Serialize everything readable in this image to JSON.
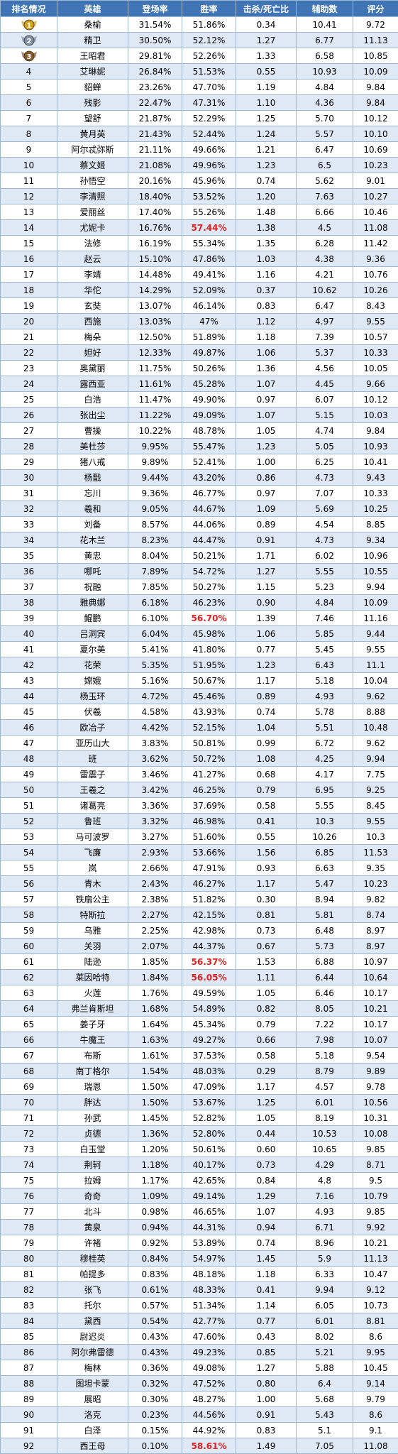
{
  "headers": [
    "排名情况",
    "英雄",
    "登场率",
    "胜率",
    "击杀/死亡比",
    "辅助数",
    "评分"
  ],
  "highlight_color": "#e02020",
  "medals": [
    {
      "rank": "1",
      "color": "#d4a017",
      "icon": "gold-medal-icon"
    },
    {
      "rank": "2",
      "color": "#7f8fa6",
      "icon": "silver-medal-icon"
    },
    {
      "rank": "3",
      "color": "#8a5a2b",
      "icon": "bronze-medal-icon"
    }
  ],
  "rows": [
    {
      "rank": "1",
      "hero": "桑榆",
      "appear": "31.54%",
      "win": "51.86%",
      "kd": "0.34",
      "assist": "10.41",
      "score": "9.72"
    },
    {
      "rank": "2",
      "hero": "精卫",
      "appear": "30.50%",
      "win": "52.12%",
      "kd": "1.27",
      "assist": "6.77",
      "score": "11.13"
    },
    {
      "rank": "3",
      "hero": "王昭君",
      "appear": "29.81%",
      "win": "52.26%",
      "kd": "1.33",
      "assist": "6.58",
      "score": "10.85"
    },
    {
      "rank": "4",
      "hero": "艾琳妮",
      "appear": "26.84%",
      "win": "51.53%",
      "kd": "0.55",
      "assist": "10.93",
      "score": "10.09"
    },
    {
      "rank": "5",
      "hero": "貂蝉",
      "appear": "23.26%",
      "win": "47.70%",
      "kd": "1.19",
      "assist": "4.84",
      "score": "9.84"
    },
    {
      "rank": "6",
      "hero": "残影",
      "appear": "22.47%",
      "win": "47.31%",
      "kd": "1.10",
      "assist": "4.36",
      "score": "9.84"
    },
    {
      "rank": "7",
      "hero": "望舒",
      "appear": "21.87%",
      "win": "52.29%",
      "kd": "1.25",
      "assist": "5.70",
      "score": "10.12"
    },
    {
      "rank": "8",
      "hero": "黄月英",
      "appear": "21.43%",
      "win": "52.44%",
      "kd": "1.24",
      "assist": "5.57",
      "score": "10.10"
    },
    {
      "rank": "9",
      "hero": "阿尔忒弥斯",
      "appear": "21.11%",
      "win": "49.66%",
      "kd": "1.21",
      "assist": "6.47",
      "score": "10.69"
    },
    {
      "rank": "10",
      "hero": "蔡文姬",
      "appear": "21.08%",
      "win": "49.96%",
      "kd": "1.23",
      "assist": "6.5",
      "score": "10.23"
    },
    {
      "rank": "11",
      "hero": "孙悟空",
      "appear": "20.16%",
      "win": "45.96%",
      "kd": "0.74",
      "assist": "5.62",
      "score": "9.01"
    },
    {
      "rank": "12",
      "hero": "李清照",
      "appear": "18.40%",
      "win": "53.52%",
      "kd": "1.20",
      "assist": "7.63",
      "score": "10.27"
    },
    {
      "rank": "13",
      "hero": "爱丽丝",
      "appear": "17.40%",
      "win": "55.26%",
      "kd": "1.48",
      "assist": "6.66",
      "score": "10.46"
    },
    {
      "rank": "14",
      "hero": "尤妮卡",
      "appear": "16.76%",
      "win": "57.44%",
      "kd": "1.38",
      "assist": "4.5",
      "score": "11.08",
      "hl": true
    },
    {
      "rank": "15",
      "hero": "法修",
      "appear": "16.19%",
      "win": "55.34%",
      "kd": "1.35",
      "assist": "6.28",
      "score": "11.42"
    },
    {
      "rank": "16",
      "hero": "赵云",
      "appear": "15.10%",
      "win": "47.86%",
      "kd": "1.03",
      "assist": "4.38",
      "score": "9.36"
    },
    {
      "rank": "17",
      "hero": "李靖",
      "appear": "14.48%",
      "win": "49.41%",
      "kd": "1.16",
      "assist": "4.21",
      "score": "10.76"
    },
    {
      "rank": "18",
      "hero": "华佗",
      "appear": "14.29%",
      "win": "52.09%",
      "kd": "0.37",
      "assist": "10.62",
      "score": "10.26"
    },
    {
      "rank": "19",
      "hero": "玄奘",
      "appear": "13.07%",
      "win": "46.14%",
      "kd": "0.83",
      "assist": "6.47",
      "score": "8.43"
    },
    {
      "rank": "20",
      "hero": "西施",
      "appear": "13.03%",
      "win": "47%",
      "kd": "1.12",
      "assist": "4.97",
      "score": "9.55"
    },
    {
      "rank": "21",
      "hero": "梅朵",
      "appear": "12.50%",
      "win": "51.89%",
      "kd": "1.18",
      "assist": "7.39",
      "score": "10.57"
    },
    {
      "rank": "22",
      "hero": "妲好",
      "appear": "12.33%",
      "win": "49.87%",
      "kd": "1.06",
      "assist": "5.37",
      "score": "10.33"
    },
    {
      "rank": "23",
      "hero": "奥黛丽",
      "appear": "11.75%",
      "win": "50.26%",
      "kd": "1.36",
      "assist": "4.56",
      "score": "10.05"
    },
    {
      "rank": "24",
      "hero": "露西亚",
      "appear": "11.61%",
      "win": "45.28%",
      "kd": "1.07",
      "assist": "4.45",
      "score": "9.66"
    },
    {
      "rank": "25",
      "hero": "白浩",
      "appear": "11.47%",
      "win": "49.90%",
      "kd": "0.97",
      "assist": "6.07",
      "score": "10.12"
    },
    {
      "rank": "26",
      "hero": "张出尘",
      "appear": "11.22%",
      "win": "49.09%",
      "kd": "1.07",
      "assist": "5.15",
      "score": "10.03"
    },
    {
      "rank": "27",
      "hero": "曹操",
      "appear": "10.22%",
      "win": "48.78%",
      "kd": "1.05",
      "assist": "4.74",
      "score": "9.84"
    },
    {
      "rank": "28",
      "hero": "美杜莎",
      "appear": "9.95%",
      "win": "55.47%",
      "kd": "1.23",
      "assist": "5.05",
      "score": "10.93"
    },
    {
      "rank": "29",
      "hero": "猪八戒",
      "appear": "9.89%",
      "win": "52.41%",
      "kd": "1.00",
      "assist": "6.25",
      "score": "10.41"
    },
    {
      "rank": "30",
      "hero": "杨戬",
      "appear": "9.44%",
      "win": "43.20%",
      "kd": "0.86",
      "assist": "4.73",
      "score": "9.43"
    },
    {
      "rank": "31",
      "hero": "忘川",
      "appear": "9.36%",
      "win": "46.77%",
      "kd": "0.97",
      "assist": "7.07",
      "score": "10.33"
    },
    {
      "rank": "32",
      "hero": "羲和",
      "appear": "9.05%",
      "win": "44.67%",
      "kd": "1.09",
      "assist": "5.69",
      "score": "10.25"
    },
    {
      "rank": "33",
      "hero": "刘备",
      "appear": "8.57%",
      "win": "44.06%",
      "kd": "0.89",
      "assist": "4.54",
      "score": "8.85"
    },
    {
      "rank": "34",
      "hero": "花木兰",
      "appear": "8.23%",
      "win": "44.47%",
      "kd": "0.91",
      "assist": "4.73",
      "score": "9.34"
    },
    {
      "rank": "35",
      "hero": "黄忠",
      "appear": "8.04%",
      "win": "50.21%",
      "kd": "1.71",
      "assist": "6.02",
      "score": "10.96"
    },
    {
      "rank": "36",
      "hero": "哪吒",
      "appear": "7.89%",
      "win": "54.72%",
      "kd": "1.27",
      "assist": "5.55",
      "score": "10.55"
    },
    {
      "rank": "37",
      "hero": "祝融",
      "appear": "7.85%",
      "win": "50.27%",
      "kd": "1.15",
      "assist": "5.23",
      "score": "9.94"
    },
    {
      "rank": "38",
      "hero": "雅典娜",
      "appear": "6.18%",
      "win": "46.23%",
      "kd": "0.90",
      "assist": "4.84",
      "score": "10.09"
    },
    {
      "rank": "39",
      "hero": "鲲鹏",
      "appear": "6.10%",
      "win": "56.70%",
      "kd": "1.39",
      "assist": "7.46",
      "score": "11.16",
      "hl": true
    },
    {
      "rank": "40",
      "hero": "吕洞宾",
      "appear": "6.04%",
      "win": "45.98%",
      "kd": "1.06",
      "assist": "5.85",
      "score": "9.44"
    },
    {
      "rank": "41",
      "hero": "夏尔美",
      "appear": "5.41%",
      "win": "41.80%",
      "kd": "0.77",
      "assist": "5.45",
      "score": "9.55"
    },
    {
      "rank": "42",
      "hero": "花荣",
      "appear": "5.35%",
      "win": "51.95%",
      "kd": "1.23",
      "assist": "6.43",
      "score": "11.1"
    },
    {
      "rank": "43",
      "hero": "嫦娥",
      "appear": "5.16%",
      "win": "50.67%",
      "kd": "1.17",
      "assist": "5.18",
      "score": "10.04"
    },
    {
      "rank": "44",
      "hero": "杨玉环",
      "appear": "4.72%",
      "win": "45.46%",
      "kd": "0.89",
      "assist": "4.93",
      "score": "9.62"
    },
    {
      "rank": "45",
      "hero": "伏羲",
      "appear": "4.58%",
      "win": "43.93%",
      "kd": "0.74",
      "assist": "5.78",
      "score": "8.88"
    },
    {
      "rank": "46",
      "hero": "欧冶子",
      "appear": "4.42%",
      "win": "52.15%",
      "kd": "1.04",
      "assist": "5.51",
      "score": "10.48"
    },
    {
      "rank": "47",
      "hero": "亚历山大",
      "appear": "3.83%",
      "win": "50.81%",
      "kd": "0.99",
      "assist": "6.72",
      "score": "9.62"
    },
    {
      "rank": "48",
      "hero": "班",
      "appear": "3.62%",
      "win": "50.72%",
      "kd": "1.08",
      "assist": "4.25",
      "score": "9.94"
    },
    {
      "rank": "49",
      "hero": "雷震子",
      "appear": "3.46%",
      "win": "41.27%",
      "kd": "0.68",
      "assist": "4.17",
      "score": "7.75"
    },
    {
      "rank": "50",
      "hero": "王羲之",
      "appear": "3.42%",
      "win": "46.25%",
      "kd": "0.79",
      "assist": "6.95",
      "score": "9.25"
    },
    {
      "rank": "51",
      "hero": "诸葛亮",
      "appear": "3.36%",
      "win": "37.69%",
      "kd": "0.58",
      "assist": "5.55",
      "score": "8.45"
    },
    {
      "rank": "52",
      "hero": "鲁班",
      "appear": "3.32%",
      "win": "46.98%",
      "kd": "0.41",
      "assist": "10.3",
      "score": "9.55"
    },
    {
      "rank": "53",
      "hero": "马可波罗",
      "appear": "3.27%",
      "win": "51.60%",
      "kd": "0.55",
      "assist": "10.26",
      "score": "10.3"
    },
    {
      "rank": "54",
      "hero": "飞廉",
      "appear": "2.93%",
      "win": "53.66%",
      "kd": "1.56",
      "assist": "6.85",
      "score": "11.53"
    },
    {
      "rank": "55",
      "hero": "岚",
      "appear": "2.66%",
      "win": "47.91%",
      "kd": "0.93",
      "assist": "6.63",
      "score": "9.35"
    },
    {
      "rank": "56",
      "hero": "青木",
      "appear": "2.43%",
      "win": "46.27%",
      "kd": "1.17",
      "assist": "5.47",
      "score": "10.23"
    },
    {
      "rank": "57",
      "hero": "铁扇公主",
      "appear": "2.38%",
      "win": "51.82%",
      "kd": "0.30",
      "assist": "8.94",
      "score": "9.82"
    },
    {
      "rank": "58",
      "hero": "特斯拉",
      "appear": "2.27%",
      "win": "42.15%",
      "kd": "0.81",
      "assist": "5.81",
      "score": "8.74"
    },
    {
      "rank": "59",
      "hero": "乌雅",
      "appear": "2.25%",
      "win": "42.98%",
      "kd": "0.73",
      "assist": "6.48",
      "score": "8.97"
    },
    {
      "rank": "60",
      "hero": "关羽",
      "appear": "2.07%",
      "win": "44.37%",
      "kd": "0.67",
      "assist": "5.73",
      "score": "8.97"
    },
    {
      "rank": "61",
      "hero": "陆逊",
      "appear": "1.85%",
      "win": "56.37%",
      "kd": "1.53",
      "assist": "6.88",
      "score": "10.97",
      "hl": true
    },
    {
      "rank": "62",
      "hero": "莱因哈特",
      "appear": "1.84%",
      "win": "56.05%",
      "kd": "1.11",
      "assist": "6.44",
      "score": "10.64",
      "hl": true
    },
    {
      "rank": "63",
      "hero": "火莲",
      "appear": "1.76%",
      "win": "49.59%",
      "kd": "1.05",
      "assist": "6.46",
      "score": "10.17"
    },
    {
      "rank": "64",
      "hero": "弗兰肯斯坦",
      "appear": "1.68%",
      "win": "54.89%",
      "kd": "0.82",
      "assist": "8.05",
      "score": "10.21"
    },
    {
      "rank": "65",
      "hero": "姜子牙",
      "appear": "1.64%",
      "win": "45.34%",
      "kd": "0.79",
      "assist": "7.22",
      "score": "10.17"
    },
    {
      "rank": "66",
      "hero": "牛魔王",
      "appear": "1.63%",
      "win": "49.27%",
      "kd": "0.66",
      "assist": "7.98",
      "score": "10.07"
    },
    {
      "rank": "67",
      "hero": "布斯",
      "appear": "1.61%",
      "win": "37.53%",
      "kd": "0.58",
      "assist": "5.18",
      "score": "9.54"
    },
    {
      "rank": "68",
      "hero": "南丁格尔",
      "appear": "1.54%",
      "win": "48.03%",
      "kd": "0.29",
      "assist": "8.79",
      "score": "9.89"
    },
    {
      "rank": "69",
      "hero": "瑞恩",
      "appear": "1.50%",
      "win": "47.09%",
      "kd": "1.17",
      "assist": "4.57",
      "score": "9.78"
    },
    {
      "rank": "70",
      "hero": "胖达",
      "appear": "1.50%",
      "win": "53.67%",
      "kd": "1.25",
      "assist": "6.01",
      "score": "10.56"
    },
    {
      "rank": "71",
      "hero": "孙武",
      "appear": "1.45%",
      "win": "52.82%",
      "kd": "1.05",
      "assist": "8.19",
      "score": "10.31"
    },
    {
      "rank": "72",
      "hero": "贞德",
      "appear": "1.36%",
      "win": "52.80%",
      "kd": "0.44",
      "assist": "10.53",
      "score": "10.08"
    },
    {
      "rank": "73",
      "hero": "白玉堂",
      "appear": "1.20%",
      "win": "50.61%",
      "kd": "0.60",
      "assist": "10.65",
      "score": "9.85"
    },
    {
      "rank": "74",
      "hero": "荆轲",
      "appear": "1.18%",
      "win": "40.17%",
      "kd": "0.73",
      "assist": "4.29",
      "score": "8.71"
    },
    {
      "rank": "75",
      "hero": "拉姆",
      "appear": "1.17%",
      "win": "42.65%",
      "kd": "0.84",
      "assist": "4.8",
      "score": "9.5"
    },
    {
      "rank": "76",
      "hero": "奇奇",
      "appear": "1.09%",
      "win": "49.14%",
      "kd": "1.29",
      "assist": "7.16",
      "score": "10.79"
    },
    {
      "rank": "77",
      "hero": "北斗",
      "appear": "0.98%",
      "win": "46.65%",
      "kd": "1.07",
      "assist": "4.93",
      "score": "9.85"
    },
    {
      "rank": "78",
      "hero": "黄泉",
      "appear": "0.94%",
      "win": "44.31%",
      "kd": "0.94",
      "assist": "6.71",
      "score": "9.92"
    },
    {
      "rank": "79",
      "hero": "许褚",
      "appear": "0.92%",
      "win": "53.89%",
      "kd": "0.74",
      "assist": "8.96",
      "score": "10.21"
    },
    {
      "rank": "80",
      "hero": "穆桂英",
      "appear": "0.84%",
      "win": "54.97%",
      "kd": "1.45",
      "assist": "5.9",
      "score": "11.13"
    },
    {
      "rank": "81",
      "hero": "帕提多",
      "appear": "0.83%",
      "win": "48.18%",
      "kd": "1.18",
      "assist": "6.33",
      "score": "10.47"
    },
    {
      "rank": "82",
      "hero": "张飞",
      "appear": "0.61%",
      "win": "48.33%",
      "kd": "0.41",
      "assist": "9.94",
      "score": "9.12"
    },
    {
      "rank": "83",
      "hero": "托尔",
      "appear": "0.57%",
      "win": "51.34%",
      "kd": "1.14",
      "assist": "6.05",
      "score": "10.73"
    },
    {
      "rank": "84",
      "hero": "黛西",
      "appear": "0.54%",
      "win": "42.77%",
      "kd": "0.77",
      "assist": "6.01",
      "score": "8.81"
    },
    {
      "rank": "85",
      "hero": "尉迟炎",
      "appear": "0.43%",
      "win": "47.60%",
      "kd": "0.43",
      "assist": "8.02",
      "score": "8.6"
    },
    {
      "rank": "86",
      "hero": "阿尔弗雷德",
      "appear": "0.43%",
      "win": "49.23%",
      "kd": "0.85",
      "assist": "5.21",
      "score": "9.95"
    },
    {
      "rank": "87",
      "hero": "梅林",
      "appear": "0.36%",
      "win": "49.08%",
      "kd": "1.27",
      "assist": "5.88",
      "score": "10.45"
    },
    {
      "rank": "88",
      "hero": "图坦卡蒙",
      "appear": "0.32%",
      "win": "47.52%",
      "kd": "0.80",
      "assist": "6.4",
      "score": "9.14"
    },
    {
      "rank": "89",
      "hero": "展昭",
      "appear": "0.30%",
      "win": "48.27%",
      "kd": "1.00",
      "assist": "5.68",
      "score": "9.79"
    },
    {
      "rank": "90",
      "hero": "洛克",
      "appear": "0.23%",
      "win": "44.56%",
      "kd": "0.91",
      "assist": "5.43",
      "score": "8.6"
    },
    {
      "rank": "91",
      "hero": "白泽",
      "appear": "0.15%",
      "win": "44.92%",
      "kd": "0.83",
      "assist": "5.1",
      "score": "9.1"
    },
    {
      "rank": "92",
      "hero": "西王母",
      "appear": "0.10%",
      "win": "58.61%",
      "kd": "1.49",
      "assist": "7.05",
      "score": "11.08",
      "hl": true
    }
  ]
}
